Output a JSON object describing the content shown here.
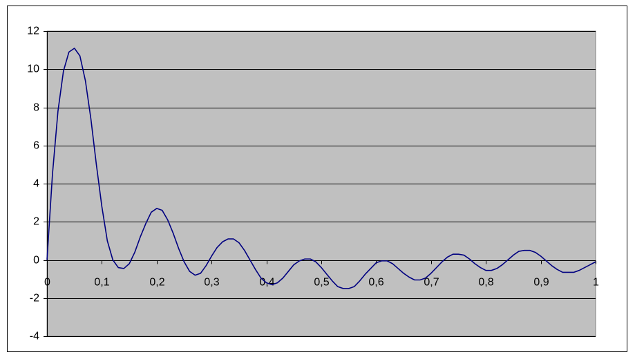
{
  "chart_data": {
    "type": "line",
    "x": [
      0,
      0.01,
      0.02,
      0.03,
      0.04,
      0.05,
      0.06,
      0.07,
      0.08,
      0.09,
      0.1,
      0.11,
      0.12,
      0.13,
      0.14,
      0.15,
      0.16,
      0.17,
      0.18,
      0.19,
      0.2,
      0.21,
      0.22,
      0.23,
      0.24,
      0.25,
      0.26,
      0.27,
      0.28,
      0.29,
      0.3,
      0.31,
      0.32,
      0.33,
      0.34,
      0.35,
      0.36,
      0.37,
      0.38,
      0.39,
      0.4,
      0.41,
      0.42,
      0.43,
      0.44,
      0.45,
      0.46,
      0.47,
      0.48,
      0.49,
      0.5,
      0.51,
      0.52,
      0.53,
      0.54,
      0.55,
      0.56,
      0.57,
      0.58,
      0.59,
      0.6,
      0.61,
      0.62,
      0.63,
      0.64,
      0.65,
      0.66,
      0.67,
      0.68,
      0.69,
      0.7,
      0.71,
      0.72,
      0.73,
      0.74,
      0.75,
      0.76,
      0.77,
      0.78,
      0.79,
      0.8,
      0.81,
      0.82,
      0.83,
      0.84,
      0.85,
      0.86,
      0.87,
      0.88,
      0.89,
      0.9,
      0.91,
      0.92,
      0.93,
      0.94,
      0.95,
      0.96,
      0.97,
      0.98,
      0.99,
      1
    ],
    "series": [
      {
        "color": "#000080",
        "values": [
          0,
          4.5,
          7.8,
          9.9,
          10.9,
          11.1,
          10.7,
          9.4,
          7.4,
          5.0,
          2.8,
          1.0,
          0.0,
          -0.4,
          -0.45,
          -0.2,
          0.4,
          1.2,
          1.9,
          2.5,
          2.7,
          2.6,
          2.1,
          1.4,
          0.6,
          -0.1,
          -0.6,
          -0.8,
          -0.7,
          -0.3,
          0.2,
          0.65,
          0.95,
          1.1,
          1.1,
          0.9,
          0.5,
          0.0,
          -0.5,
          -0.95,
          -1.2,
          -1.3,
          -1.2,
          -0.95,
          -0.6,
          -0.25,
          -0.05,
          0.05,
          0.05,
          -0.1,
          -0.4,
          -0.75,
          -1.1,
          -1.4,
          -1.5,
          -1.5,
          -1.4,
          -1.1,
          -0.75,
          -0.45,
          -0.15,
          -0.05,
          -0.05,
          -0.2,
          -0.45,
          -0.7,
          -0.9,
          -1.05,
          -1.05,
          -0.95,
          -0.7,
          -0.4,
          -0.1,
          0.15,
          0.3,
          0.3,
          0.25,
          0.05,
          -0.2,
          -0.4,
          -0.55,
          -0.55,
          -0.45,
          -0.25,
          0.0,
          0.25,
          0.45,
          0.5,
          0.5,
          0.4,
          0.2,
          -0.05,
          -0.3,
          -0.5,
          -0.65,
          -0.65,
          -0.65,
          -0.55,
          -0.4,
          -0.25,
          -0.1
        ]
      }
    ],
    "xlim": [
      0,
      1
    ],
    "xticks": [
      0,
      {
        "value": 0.1,
        "label": "0,1"
      },
      {
        "value": 0.2,
        "label": "0,2"
      },
      {
        "value": 0.3,
        "label": "0,3"
      },
      {
        "value": 0.4,
        "label": "0,4"
      },
      {
        "value": 0.5,
        "label": "0,5"
      },
      {
        "value": 0.6,
        "label": "0,6"
      },
      {
        "value": 0.7,
        "label": "0,7"
      },
      {
        "value": 0.8,
        "label": "0,8"
      },
      {
        "value": 0.9,
        "label": "0,9"
      },
      1
    ],
    "ylim": [
      -4,
      12
    ],
    "yticks": [
      -4,
      -2,
      0,
      2,
      4,
      6,
      8,
      10,
      12
    ],
    "grid": true,
    "plot_background": "#c0c0c0"
  }
}
